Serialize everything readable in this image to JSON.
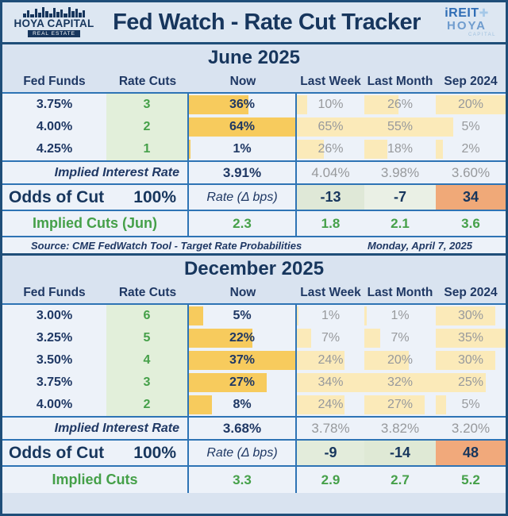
{
  "header": {
    "title": "Fed Watch - Rate Cut Tracker",
    "logo_left": {
      "title": "HOYA CAPITAL",
      "subtitle": "REAL ESTATE"
    },
    "logo_right": {
      "top": "iREIT",
      "plus": "+",
      "middle": "HOYA",
      "subtitle": "CAPITAL"
    }
  },
  "source_bar": {
    "source": "Source: CME FedWatch Tool - Target Rate Probabilities",
    "date": "Monday, April 7, 2025"
  },
  "colors": {
    "navy": "#1f3864",
    "border_blue": "#2e74b5",
    "outer_border": "#1f4e79",
    "band_bg": "#d9e3f0",
    "cell_bg": "#edf2f9",
    "green_text": "#45a049",
    "green_bg": "#e2efda",
    "gold_bar": "#f7cb5d",
    "yellow_bar": "#fbeab9",
    "gray_text": "#97999c",
    "orange": "#f0a978"
  },
  "chart_data": [
    {
      "type": "table",
      "title": "June 2025",
      "columns": [
        "Fed Funds",
        "Rate Cuts",
        "Now",
        "Last Week",
        "Last Month",
        "Sep 2024"
      ],
      "rows": [
        {
          "fed_funds": "3.75%",
          "rate_cuts": 3,
          "now": 36,
          "last_week": 10,
          "last_month": 26,
          "sep_2024": 20
        },
        {
          "fed_funds": "4.00%",
          "rate_cuts": 2,
          "now": 64,
          "last_week": 65,
          "last_month": 55,
          "sep_2024": 5
        },
        {
          "fed_funds": "4.25%",
          "rate_cuts": 1,
          "now": 1,
          "last_week": 26,
          "last_month": 18,
          "sep_2024": 2
        }
      ],
      "implied_interest_rate": {
        "label": "Implied Interest Rate",
        "now": "3.91%",
        "last_week": "4.04%",
        "last_month": "3.98%",
        "sep_2024": "3.60%"
      },
      "odds_of_cut": {
        "label": "Odds of Cut",
        "value": "100%",
        "rate_label": "Rate (Δ bps)",
        "values": [
          "-13",
          "-7",
          "34"
        ],
        "value_bgs": [
          "#dfe8d7",
          "#eaf0e5",
          "#f0a978"
        ]
      },
      "implied_cuts": {
        "label": "Implied Cuts (Jun)",
        "values": [
          "2.3",
          "1.8",
          "2.1",
          "3.6"
        ]
      }
    },
    {
      "type": "table",
      "title": "December 2025",
      "columns": [
        "Fed Funds",
        "Rate Cuts",
        "Now",
        "Last Week",
        "Last Month",
        "Sep 2024"
      ],
      "rows": [
        {
          "fed_funds": "3.00%",
          "rate_cuts": 6,
          "now": 5,
          "last_week": 1,
          "last_month": 1,
          "sep_2024": 30
        },
        {
          "fed_funds": "3.25%",
          "rate_cuts": 5,
          "now": 22,
          "last_week": 7,
          "last_month": 7,
          "sep_2024": 35
        },
        {
          "fed_funds": "3.50%",
          "rate_cuts": 4,
          "now": 37,
          "last_week": 24,
          "last_month": 20,
          "sep_2024": 30
        },
        {
          "fed_funds": "3.75%",
          "rate_cuts": 3,
          "now": 27,
          "last_week": 34,
          "last_month": 32,
          "sep_2024": 25
        },
        {
          "fed_funds": "4.00%",
          "rate_cuts": 2,
          "now": 8,
          "last_week": 24,
          "last_month": 27,
          "sep_2024": 5
        }
      ],
      "implied_interest_rate": {
        "label": "Implied Interest Rate",
        "now": "3.68%",
        "last_week": "3.78%",
        "last_month": "3.82%",
        "sep_2024": "3.20%"
      },
      "odds_of_cut": {
        "label": "Odds of Cut",
        "value": "100%",
        "rate_label": "Rate (Δ bps)",
        "values": [
          "-9",
          "-14",
          "48"
        ],
        "value_bgs": [
          "#e3ecdb",
          "#dfe9d5",
          "#f1a97b"
        ]
      },
      "implied_cuts": {
        "label": "Implied Cuts",
        "values": [
          "3.3",
          "2.9",
          "2.7",
          "5.2"
        ]
      }
    }
  ]
}
